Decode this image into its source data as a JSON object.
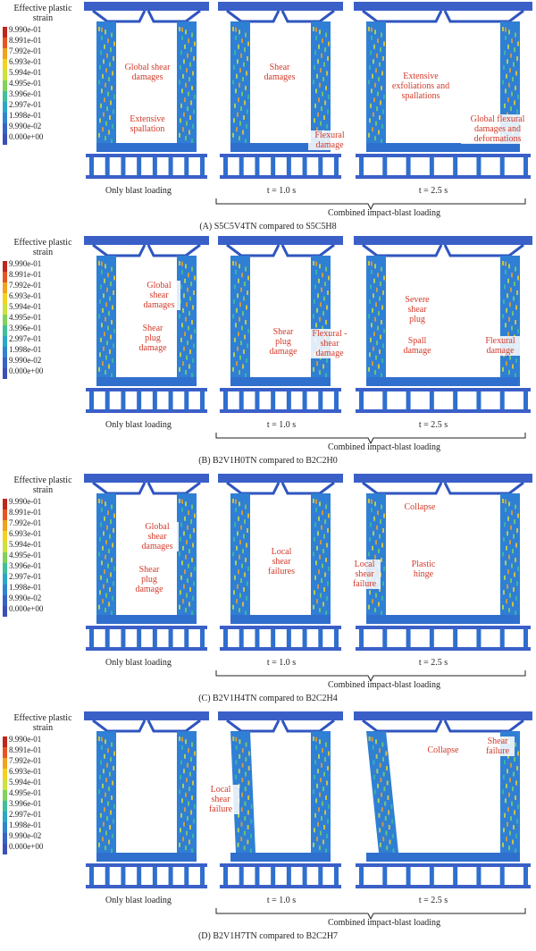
{
  "legend": {
    "title": "Effective plastic strain",
    "values": [
      "9.990e-01",
      "8.991e-01",
      "7.992e-01",
      "6.993e-01",
      "5.994e-01",
      "4.995e-01",
      "3.996e-01",
      "2.997e-01",
      "1.998e-01",
      "9.990e-02",
      "0.000e+00"
    ],
    "colors": [
      "#c0261c",
      "#e8541f",
      "#f2a21c",
      "#f5d21e",
      "#cde23a",
      "#7fd35a",
      "#3fbf9a",
      "#2aa6c8",
      "#2f83d0",
      "#3564c6",
      "#3a4fb8"
    ]
  },
  "labels": {
    "only_blast": "Only blast loading",
    "t1": "t = 1.0 s",
    "t2": "t = 2.5 s",
    "combined": "Combined impact-blast loading"
  },
  "panels": [
    {
      "caption": "(A) S5C5V4TN compared to S5C5H8",
      "annotations": [
        {
          "text": "Global shear damages",
          "frame": 0,
          "pos": "a1"
        },
        {
          "text": "Extensive spallation",
          "frame": 0,
          "pos": "a2"
        },
        {
          "text": "Shear damages",
          "frame": 1,
          "pos": "a3"
        },
        {
          "text": "Flexural damage",
          "frame": 1,
          "pos": "a4"
        },
        {
          "text": "Extensive exfoliations and spallations",
          "frame": 2,
          "pos": "a5"
        },
        {
          "text": "Global flexural damages and deformations",
          "frame": 2,
          "pos": "a6"
        }
      ]
    },
    {
      "caption": "(B) B2V1H0TN compared to B2C2H0",
      "annotations": [
        {
          "text": "Global shear damages",
          "frame": 0,
          "pos": "b1"
        },
        {
          "text": "Shear plug damage",
          "frame": 0,
          "pos": "b2"
        },
        {
          "text": "Shear plug damage",
          "frame": 1,
          "pos": "b3"
        },
        {
          "text": "Flexural -shear damage",
          "frame": 1,
          "pos": "b4"
        },
        {
          "text": "Severe shear plug",
          "frame": 2,
          "pos": "b5"
        },
        {
          "text": "Spall damage",
          "frame": 2,
          "pos": "b6"
        },
        {
          "text": "Flexural damage",
          "frame": 2,
          "pos": "b7"
        }
      ]
    },
    {
      "caption": "(C) B2V1H4TN compared to B2C2H4",
      "annotations": [
        {
          "text": "Global shear damages",
          "frame": 0,
          "pos": "c1"
        },
        {
          "text": "Shear plug damage",
          "frame": 0,
          "pos": "c2"
        },
        {
          "text": "Local shear failures",
          "frame": 1,
          "pos": "c3"
        },
        {
          "text": "Collapse",
          "frame": 2,
          "pos": "c4"
        },
        {
          "text": "Local shear failure",
          "frame": 2,
          "pos": "c5"
        },
        {
          "text": "Plastic hinge",
          "frame": 2,
          "pos": "c6"
        }
      ]
    },
    {
      "caption": "(D) B2V1H7TN compared to B2C2H7",
      "annotations": [
        {
          "text": "Local shear failure",
          "frame": 1,
          "pos": "d1"
        },
        {
          "text": "Collapse",
          "frame": 2,
          "pos": "d2"
        },
        {
          "text": "Shear failure",
          "frame": 2,
          "pos": "d3"
        }
      ]
    }
  ]
}
